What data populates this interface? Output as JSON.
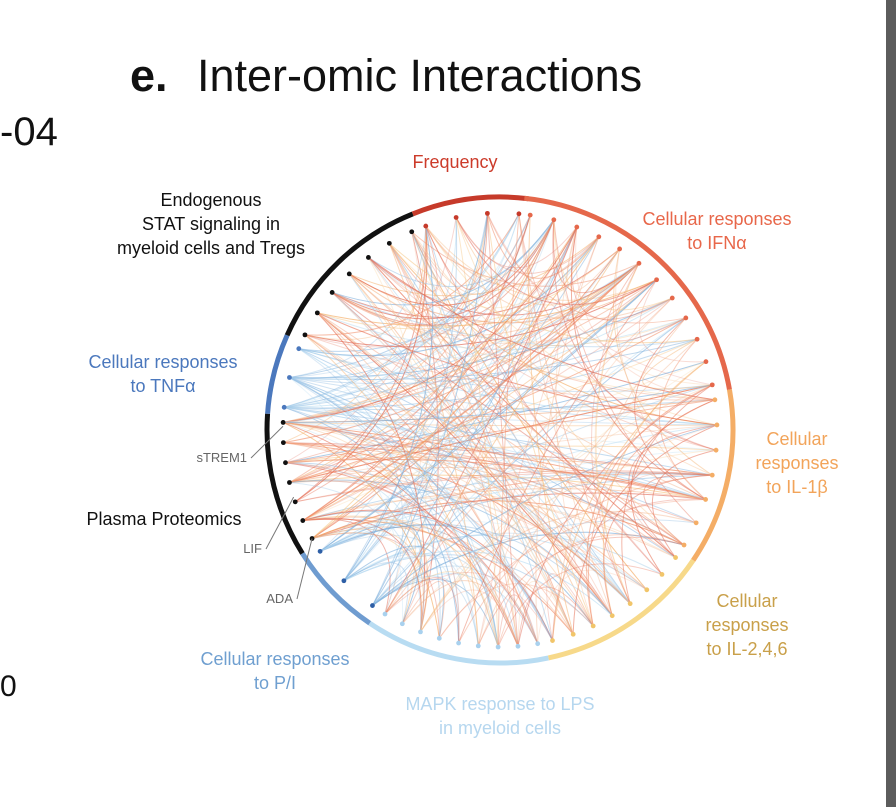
{
  "header": {
    "letter": "e.",
    "title": "Inter-omic Interactions",
    "left_fragment": "-04",
    "left_zero": "0"
  },
  "groups": [
    {
      "key": "frequency",
      "label": "Frequency",
      "color": "#cc3b2a"
    },
    {
      "key": "ifna",
      "label": "Cellular responses\nto IFNα",
      "color": "#e8674a"
    },
    {
      "key": "il1b",
      "label": "Cellular\nresponses\nto IL-1β",
      "color": "#f2a45a"
    },
    {
      "key": "il246",
      "label": "Cellular\nresponses\nto IL-2,4,6",
      "color": "#c9a04a"
    },
    {
      "key": "mapk",
      "label": "MAPK response to LPS\nin myeloid cells",
      "color": "#b6d7ef"
    },
    {
      "key": "pi",
      "label": "Cellular responses\nto P/I",
      "color": "#6f9fd0"
    },
    {
      "key": "proteomics",
      "label": "Plasma Proteomics",
      "color": "#111111"
    },
    {
      "key": "tnfa",
      "label": "Cellular responses\nto TNFα",
      "color": "#4b78bd"
    },
    {
      "key": "stat",
      "label": "Endogenous\nSTAT signaling in\nmyeloid cells and Tregs",
      "color": "#111111"
    }
  ],
  "proteins": [
    "sTREM1",
    "LIF",
    "ADA"
  ],
  "arc_colors": {
    "frequency": "#c63a2a",
    "ifna": "#e5684b",
    "il1b": "#f4ad66",
    "il246": "#f7d98a",
    "mapk": "#b8dcf2",
    "pi": "#6f9cd0",
    "proteomics": "#111111",
    "tnfa": "#4b78bd",
    "stat": "#111111"
  }
}
